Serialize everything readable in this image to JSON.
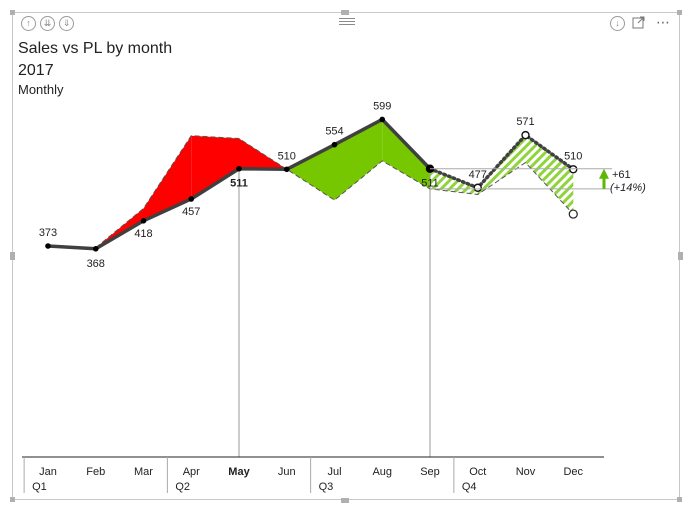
{
  "header": {
    "title": "Sales vs PL by month",
    "subtitle": "2017",
    "subtitle2": "Monthly"
  },
  "colors": {
    "negative": "#ff0000",
    "positive": "#77c700",
    "forecast_hatch": "#8fd43b",
    "line": "#404040",
    "arrow": "#5cb800"
  },
  "icons": [
    "arrow-up-icon",
    "double-down-icon",
    "expand-down-icon",
    "drill-down-icon",
    "focus-mode-icon",
    "more-options-icon",
    "drag-grip-icon"
  ],
  "chart_data": {
    "type": "area",
    "categories": [
      "Jan",
      "Feb",
      "Mar",
      "Apr",
      "May",
      "Jun",
      "Jul",
      "Aug",
      "Sep",
      "Oct",
      "Nov",
      "Dec"
    ],
    "highlighted_category": "May",
    "quarters": [
      "Q1",
      "Q2",
      "Q3",
      "Q4"
    ],
    "series": [
      {
        "values": [
          373,
          368,
          418,
          457,
          511,
          510,
          554,
          599,
          511,
          477,
          571,
          510
        ],
        "forecast_from": "Sep"
      },
      {
        "values": [
          373,
          370,
          440,
          570,
          565,
          510,
          455,
          525,
          475,
          465,
          522,
          430
        ]
      }
    ],
    "data_labels": [
      "373",
      "368",
      "418",
      "457",
      "511",
      "510",
      "554",
      "599",
      "511",
      "477",
      "571",
      "510"
    ],
    "variance_annotation": {
      "value": "+61",
      "percent": "(+14%)"
    },
    "ylim": [
      -400,
      660
    ],
    "grid": false
  }
}
